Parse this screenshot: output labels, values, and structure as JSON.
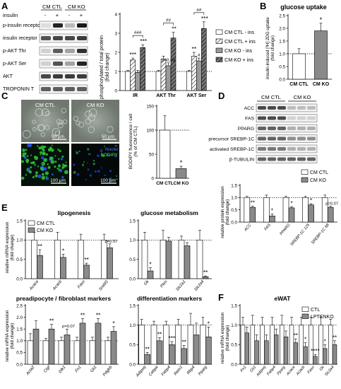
{
  "panels": {
    "A": {
      "label": "A",
      "blot": {
        "groups": [
          "CM CTL",
          "CM KO"
        ],
        "insulin_label": "insulin",
        "lane_signs": [
          "-",
          "+",
          "-",
          "+"
        ],
        "rows": [
          "p-insulin receptor",
          "insulin receptor",
          "p-AKT Thr",
          "p-AKT Ser",
          "AKT",
          "TROPONIN T"
        ]
      },
      "chart": {
        "ylabel": "phosphorylated / total protein",
        "ylabel2": "(fold change)",
        "legend": [
          "CM CTL - ins",
          "CM CTL + ins",
          "CM KO - ins",
          "CM KO + ins"
        ],
        "stats": {
          "IR": {
            "pair1": "***",
            "pair2": "***",
            "bracket": "###"
          },
          "AKT Thr": {
            "pair1": "",
            "pair2": "**",
            "bracket": "##",
            "p_label": "p=0.09"
          },
          "AKT Ser": {
            "pair1": "**",
            "pair2": "***",
            "bracket": "##",
            "hash": "#"
          }
        }
      }
    },
    "B": {
      "label": "B",
      "title": "glucose uptake",
      "ylabel": "insulin-induced [³H] 2DG uptake",
      "ylabel2": "(fold change)",
      "star": "*"
    },
    "C": {
      "label": "C",
      "img_labels": {
        "ctl": "CM CTL",
        "ko": "CM KO"
      },
      "scale_top": "50 µm",
      "scale_bottom": "100 µm",
      "stain_nuclei": "Nuclei",
      "stain_bodipy": "BODIPY",
      "ylabel": "BODIPY fluorescence / cell",
      "ylabel2": "(% of CM CTL)",
      "star": "*"
    },
    "D": {
      "label": "D",
      "groups": [
        "CM CTL",
        "CM KO"
      ],
      "blot_rows": [
        "ACC",
        "FAS",
        "PPARG",
        "precursor SREBP-1C",
        "activated SREBP-1C",
        "β-TUBULIN"
      ],
      "ylabel": "relative protein expression",
      "ylabel2": "(fold change)",
      "legend": [
        "CM CTL",
        "CM KO"
      ],
      "stars": [
        "**",
        "*",
        "*",
        "*",
        "p=0.07"
      ]
    },
    "E": {
      "label": "E",
      "ylabel": "relative mRNA expression",
      "ylabel2": "(fold change)",
      "legend": [
        "CM CTL",
        "CM KO"
      ],
      "sub": [
        {
          "title": "lipogenesis",
          "stars": [
            "**",
            "*",
            "**",
            "p=0.07"
          ]
        },
        {
          "title": "glucose metabolism",
          "stars": [
            "*",
            "",
            "",
            "**"
          ]
        },
        {
          "title": "preadipocyte / fibroblast markers",
          "stars": [
            "",
            "**",
            "p=0.07",
            "**",
            "**",
            "*"
          ]
        },
        {
          "title": "differentiation markers",
          "stars": [
            "**",
            "**",
            "***",
            "**",
            "",
            "*"
          ]
        }
      ]
    },
    "F": {
      "label": "F",
      "title": "eWAT",
      "ylabel": "relative mRNA expression",
      "ylabel2": "(fold change)",
      "legend": [
        "CTL",
        "LPTENKO"
      ],
      "stars": [
        "",
        "",
        "",
        "",
        "",
        "**",
        "*",
        "****",
        "*",
        "**"
      ]
    }
  },
  "chart_data": [
    {
      "type": "bar",
      "panel": "A",
      "categories": [
        "IR",
        "AKT Thr",
        "AKT Ser"
      ],
      "series": [
        {
          "name": "CM CTL - ins",
          "values": [
            1.0,
            1.0,
            1.0
          ]
        },
        {
          "name": "CM CTL + ins",
          "values": [
            1.6,
            1.65,
            1.8
          ]
        },
        {
          "name": "CM KO - ins",
          "values": [
            0.95,
            1.3,
            1.55
          ]
        },
        {
          "name": "CM KO + ins",
          "values": [
            2.25,
            2.75,
            3.25
          ]
        }
      ],
      "errors": [
        [
          0.05,
          0.05,
          0.05
        ],
        [
          0.1,
          0.15,
          0.2
        ],
        [
          0.1,
          0.15,
          0.15
        ],
        [
          0.15,
          0.3,
          0.35
        ]
      ],
      "ylim": [
        0,
        4
      ],
      "yticks": [
        0,
        1,
        2,
        3,
        4
      ],
      "reference_line": 1
    },
    {
      "type": "bar",
      "panel": "B",
      "categories": [
        "CM CTL",
        "CM KO"
      ],
      "values": [
        1.0,
        1.9
      ],
      "errors": [
        0.2,
        0.3
      ],
      "ylim": [
        0,
        2.5
      ],
      "yticks": [
        0.0,
        0.5,
        1.0,
        1.5,
        2.0,
        2.5
      ],
      "reference_line": 1
    },
    {
      "type": "bar",
      "panel": "C",
      "categories": [
        "CM CTL",
        "CM KO"
      ],
      "values": [
        100,
        20
      ],
      "errors": [
        30,
        5
      ],
      "ylim": [
        0,
        150
      ],
      "yticks": [
        0,
        50,
        100,
        150
      ],
      "reference_line": 100
    },
    {
      "type": "bar",
      "panel": "D",
      "categories": [
        "ACC",
        "FAS",
        "PPARG",
        "SREBP-1C 125",
        "SREBP-1C 68"
      ],
      "series": [
        {
          "name": "CM CTL",
          "values": [
            1.0,
            1.0,
            1.0,
            1.0,
            1.0
          ]
        },
        {
          "name": "CM KO",
          "values": [
            0.6,
            0.25,
            0.58,
            0.7,
            0.6
          ]
        }
      ],
      "errors": [
        [
          0.05,
          0.1,
          0.05,
          0.05,
          0.1
        ],
        [
          0.05,
          0.08,
          0.05,
          0.05,
          0.05
        ]
      ],
      "ylim": [
        0,
        1.5
      ],
      "yticks": [
        0.0,
        0.5,
        1.0,
        1.5
      ],
      "reference_line": 1
    },
    {
      "type": "bar",
      "panel": "E-lipogenesis",
      "categories": [
        "Acaca",
        "Acacb",
        "Fasn",
        "Srebf1"
      ],
      "series": [
        {
          "name": "CM CTL",
          "values": [
            1.0,
            1.0,
            1.0,
            1.0
          ]
        },
        {
          "name": "CM KO",
          "values": [
            0.6,
            0.55,
            0.35,
            0.8
          ]
        }
      ],
      "errors": [
        [
          0.2,
          0.2,
          0.15,
          0.15
        ],
        [
          0.15,
          0.08,
          0.05,
          0.1
        ]
      ],
      "ylim": [
        0,
        1.5
      ],
      "yticks": [
        0.0,
        0.5,
        1.0,
        1.5
      ],
      "reference_line": 1
    },
    {
      "type": "bar",
      "panel": "E-glucose-metabolism",
      "categories": [
        "Gk",
        "Pkm",
        "Slc2a1",
        "Slc2a4"
      ],
      "series": [
        {
          "name": "CM CTL",
          "values": [
            1.0,
            1.0,
            1.0,
            1.0
          ]
        },
        {
          "name": "CM KO",
          "values": [
            0.2,
            0.97,
            0.85,
            0.05
          ]
        }
      ],
      "errors": [
        [
          0.2,
          0.25,
          0.1,
          0.25
        ],
        [
          0.08,
          0.1,
          0.08,
          0.02
        ]
      ],
      "ylim": [
        0,
        1.5
      ],
      "yticks": [
        0.0,
        0.5,
        1.0,
        1.5
      ],
      "reference_line": 1
    },
    {
      "type": "bar",
      "panel": "E-preadipocyte",
      "categories": [
        "Acta2",
        "Ctgf",
        "Dlk1",
        "Fn1",
        "Gli1",
        "Pdgfrb"
      ],
      "series": [
        {
          "name": "CM CTL",
          "values": [
            1.0,
            1.0,
            1.0,
            1.0,
            1.0,
            1.0
          ]
        },
        {
          "name": "CM KO",
          "values": [
            1.5,
            1.5,
            1.25,
            1.75,
            1.75,
            1.4
          ]
        }
      ],
      "errors": [
        [
          0.3,
          0.1,
          0.15,
          0.15,
          0.15,
          0.15
        ],
        [
          0.35,
          0.2,
          0.25,
          0.2,
          0.2,
          0.2
        ]
      ],
      "ylim": [
        0,
        2.5
      ],
      "yticks": [
        0.0,
        0.5,
        1.0,
        1.5,
        2.0,
        2.5
      ],
      "reference_line": 1
    },
    {
      "type": "bar",
      "panel": "E-differentiation",
      "categories": [
        "Adipoq",
        "Cebpa",
        "Fabp4",
        "Retn1",
        "Rbp4",
        "Pparg"
      ],
      "series": [
        {
          "name": "CM CTL",
          "values": [
            1.0,
            1.0,
            1.0,
            1.0,
            1.0,
            1.0
          ]
        },
        {
          "name": "CM KO",
          "values": [
            0.25,
            0.6,
            0.5,
            0.4,
            0.75,
            0.7
          ]
        }
      ],
      "errors": [
        [
          0.15,
          0.1,
          0.1,
          0.15,
          0.3,
          0.2
        ],
        [
          0.05,
          0.08,
          0.08,
          0.08,
          0.3,
          0.25
        ]
      ],
      "ylim": [
        0,
        1.5
      ],
      "yticks": [
        0.0,
        0.5,
        1.0,
        1.5
      ],
      "reference_line": 1
    },
    {
      "type": "bar",
      "panel": "F",
      "categories": [
        "Fn1",
        "Gli1",
        "Adipoq",
        "Fabp4",
        "Pparg",
        "Acaca",
        "Acacb",
        "Fasn",
        "Gk",
        "Slc2a4"
      ],
      "series": [
        {
          "name": "CTL",
          "values": [
            1.0,
            1.0,
            1.0,
            1.0,
            1.0,
            1.0,
            1.0,
            1.0,
            1.0,
            1.0
          ]
        },
        {
          "name": "LPTENKO",
          "values": [
            0.8,
            0.6,
            0.6,
            0.75,
            0.7,
            0.55,
            0.45,
            0.2,
            0.4,
            0.5
          ]
        }
      ],
      "errors": [
        [
          0.2,
          0.25,
          0.2,
          0.2,
          0.25,
          0.2,
          0.2,
          0.2,
          0.2,
          0.15
        ],
        [
          0.15,
          0.15,
          0.15,
          0.15,
          0.15,
          0.1,
          0.1,
          0.05,
          0.1,
          0.1
        ]
      ],
      "ylim": [
        0,
        1.5
      ],
      "yticks": [
        0.0,
        0.5,
        1.0,
        1.5
      ],
      "reference_line": 1
    }
  ]
}
